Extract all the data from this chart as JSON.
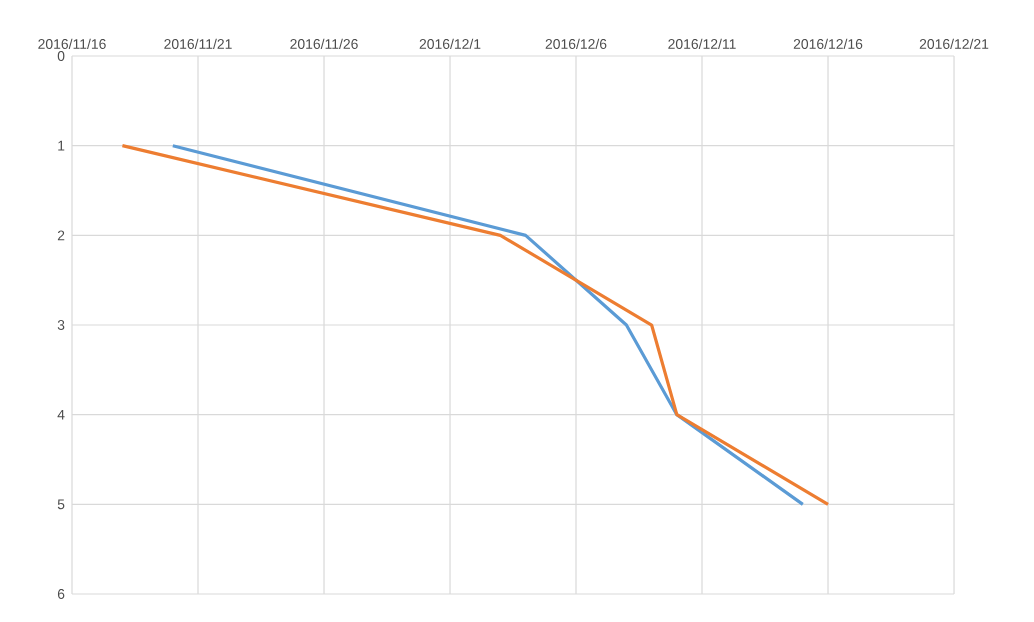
{
  "chart_data": {
    "type": "line",
    "xlim": [
      "2016-11-16",
      "2016-12-21"
    ],
    "xticks": [
      {
        "value": "2016-11-16",
        "label": "2016/11/16"
      },
      {
        "value": "2016-11-21",
        "label": "2016/11/21"
      },
      {
        "value": "2016-11-26",
        "label": "2016/11/26"
      },
      {
        "value": "2016-12-01",
        "label": "2016/12/1"
      },
      {
        "value": "2016-12-06",
        "label": "2016/12/6"
      },
      {
        "value": "2016-12-11",
        "label": "2016/12/11"
      },
      {
        "value": "2016-12-16",
        "label": "2016/12/16"
      },
      {
        "value": "2016-12-21",
        "label": "2016/12/21"
      }
    ],
    "ylim": [
      6,
      0
    ],
    "yticks": [
      0,
      1,
      2,
      3,
      4,
      5,
      6
    ],
    "grid": true,
    "marker": "none",
    "line_style": "solid",
    "series": [
      {
        "color": "#5b9bd5",
        "x": [
          "2016-11-20",
          "2016-12-04",
          "2016-12-08",
          "2016-12-10",
          "2016-12-15"
        ],
        "values": [
          1,
          2,
          3,
          4,
          5
        ]
      },
      {
        "color": "#ed7d31",
        "x": [
          "2016-11-18",
          "2016-12-03",
          "2016-12-09",
          "2016-12-10",
          "2016-12-16"
        ],
        "values": [
          1,
          2,
          3,
          4,
          5
        ]
      }
    ]
  }
}
